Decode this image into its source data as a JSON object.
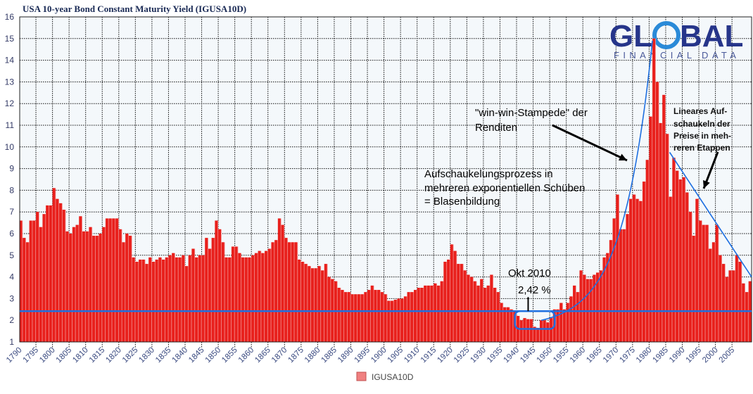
{
  "chart_data": {
    "type": "bar",
    "title": "USA 10-year Bond Constant Maturity Yield (IGUSA10D)",
    "xlabel": "",
    "ylabel": "",
    "xlim": [
      1790,
      2011
    ],
    "ylim": [
      1,
      16
    ],
    "grid": true,
    "legend_position": "bottom",
    "y_ticks": [
      "1",
      "2",
      "3",
      "4",
      "5",
      "6",
      "7",
      "8",
      "9",
      "10",
      "11",
      "12",
      "13",
      "14",
      "15",
      "16"
    ],
    "x_ticks": [
      "1790",
      "1795",
      "1800",
      "1805",
      "1810",
      "1815",
      "1820",
      "1825",
      "1830",
      "1835",
      "1840",
      "1845",
      "1850",
      "1855",
      "1860",
      "1865",
      "1870",
      "1875",
      "1880",
      "1885",
      "1890",
      "1895",
      "1900",
      "1905",
      "1910",
      "1915",
      "1920",
      "1925",
      "1930",
      "1935",
      "1940",
      "1945",
      "1950",
      "1955",
      "1960",
      "1965",
      "1970",
      "1975",
      "1980",
      "1985",
      "1990",
      "1995",
      "2000",
      "2005"
    ],
    "series": [
      {
        "name": "IGUSA10D",
        "color": "#e8201c",
        "x_start": 1790,
        "values": [
          6.6,
          5.8,
          5.6,
          6.6,
          6.6,
          7.0,
          6.3,
          6.9,
          7.3,
          7.3,
          8.1,
          7.6,
          7.4,
          7.1,
          6.1,
          6.0,
          6.3,
          6.4,
          6.8,
          6.1,
          6.1,
          6.3,
          5.9,
          5.9,
          6.0,
          6.3,
          6.7,
          6.7,
          6.7,
          6.7,
          6.2,
          5.6,
          6.0,
          5.9,
          4.9,
          4.7,
          4.8,
          4.8,
          4.6,
          4.9,
          4.7,
          4.8,
          4.9,
          4.8,
          4.9,
          5.0,
          5.1,
          4.9,
          4.9,
          5.0,
          4.5,
          5.0,
          5.3,
          4.9,
          5.0,
          5.0,
          5.8,
          5.3,
          5.8,
          6.6,
          6.2,
          5.6,
          4.9,
          4.9,
          5.4,
          5.4,
          5.1,
          4.9,
          4.9,
          4.9,
          5.0,
          5.1,
          5.2,
          5.1,
          5.2,
          5.3,
          5.6,
          5.7,
          6.7,
          6.4,
          5.8,
          5.6,
          5.6,
          5.6,
          4.8,
          4.7,
          4.6,
          4.5,
          4.4,
          4.4,
          4.5,
          4.3,
          4.6,
          4.0,
          3.9,
          3.8,
          3.5,
          3.4,
          3.3,
          3.3,
          3.2,
          3.2,
          3.2,
          3.2,
          3.3,
          3.4,
          3.6,
          3.4,
          3.4,
          3.3,
          3.2,
          2.9,
          2.9,
          2.95,
          3.0,
          3.0,
          3.1,
          3.3,
          3.3,
          3.4,
          3.5,
          3.5,
          3.6,
          3.6,
          3.6,
          3.7,
          3.6,
          3.8,
          4.7,
          4.8,
          5.5,
          5.2,
          4.6,
          4.6,
          4.3,
          4.1,
          4.0,
          3.8,
          3.6,
          3.9,
          3.5,
          3.6,
          4.1,
          3.5,
          3.3,
          2.8,
          2.6,
          2.6,
          2.5,
          2.4,
          2.2,
          2.0,
          2.1,
          2.05,
          2.05,
          1.7,
          1.65,
          2.0,
          2.0,
          1.9,
          2.1,
          2.5,
          2.5,
          2.8,
          2.5,
          2.8,
          3.1,
          3.6,
          3.3,
          4.3,
          4.1,
          3.9,
          3.9,
          4.1,
          4.2,
          4.3,
          4.9,
          5.1,
          5.7,
          6.7,
          7.8,
          6.2,
          6.2,
          6.9,
          7.6,
          7.8,
          7.6,
          7.5,
          8.4,
          9.4,
          11.4,
          15.0,
          13.0,
          11.1,
          12.4,
          10.6,
          7.7,
          9.5,
          8.9,
          8.5,
          8.6,
          7.9,
          7.0,
          5.9,
          7.6,
          6.6,
          6.4,
          6.4,
          5.3,
          5.6,
          6.4,
          5.0,
          4.6,
          4.0,
          4.3,
          4.3,
          5.0,
          4.7,
          3.7,
          3.3,
          3.8
        ]
      }
    ],
    "reference_line": {
      "value": 2.42,
      "color": "#1e6fe0"
    },
    "annotations": {
      "stampede": [
        "\"win-win-Stampede\" der",
        "Renditen"
      ],
      "process": [
        "Aufschaukelungsprozess in",
        "mehreren exponentiellen Schüben",
        "= Blasenbildung"
      ],
      "linear": [
        "Lineares Auf-",
        "schaukeln der",
        "Preise in meh-",
        "reren Etappen"
      ],
      "okt_label": "Okt 2010",
      "okt_value": "2,42 %"
    },
    "logo": {
      "main": "GLOBAL",
      "sub": "FINANCIAL DATA",
      "tm": "TM"
    }
  }
}
